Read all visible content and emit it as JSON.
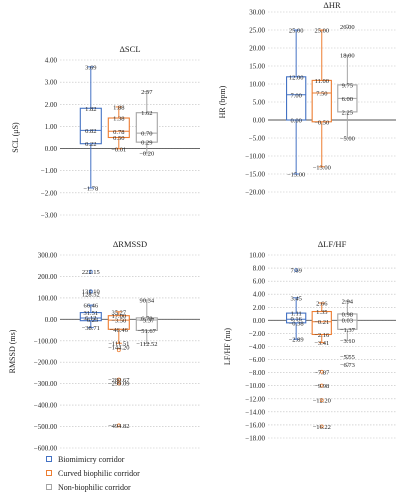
{
  "colors": {
    "biomimicry": "#4472c4",
    "curved": "#ed7d31",
    "nonbiophilic": "#a5a5a5"
  },
  "legend": [
    {
      "label": "Biomimicry corridor",
      "color": "#4472c4"
    },
    {
      "label": "Curved biophilic corridor",
      "color": "#ed7d31"
    },
    {
      "label": "Non-biophilic corridor",
      "color": "#a5a5a5"
    }
  ],
  "chart_data": [
    {
      "type": "box",
      "title": "ΔSCL",
      "ylabel": "SCL (μS)",
      "ylim": [
        -3.0,
        4.0
      ],
      "yticks": [
        "−3.00",
        "−2.00",
        "−1.00",
        "0.00",
        "1.00",
        "2.00",
        "3.00",
        "4.00"
      ],
      "ytick_values": [
        -3,
        -2,
        -1,
        0,
        1,
        2,
        3,
        4
      ],
      "grid": "dotted",
      "series": [
        {
          "color": "#4472c4",
          "min": -1.78,
          "q1": 0.22,
          "median": 0.82,
          "q3": 1.82,
          "max": 3.69,
          "outliers": [],
          "labels": [
            {
              "t": "3.69",
              "v": 3.69
            },
            {
              "t": "1.82",
              "v": 1.82
            },
            {
              "t": "0.82",
              "v": 0.82
            },
            {
              "t": "0.22",
              "v": 0.22
            },
            {
              "t": "−1.78",
              "v": -1.78
            }
          ]
        },
        {
          "color": "#ed7d31",
          "min": -0.01,
          "q1": 0.5,
          "median": 0.78,
          "q3": 1.38,
          "max": 1.88,
          "outliers": [],
          "labels": [
            {
              "t": "1.88",
              "v": 1.88
            },
            {
              "t": "1.38",
              "v": 1.38
            },
            {
              "t": "0.78",
              "v": 0.78
            },
            {
              "t": "0.50",
              "v": 0.5
            },
            {
              "t": "−0.01",
              "v": -0.01
            }
          ]
        },
        {
          "color": "#a5a5a5",
          "min": -0.2,
          "q1": 0.29,
          "median": 0.7,
          "q3": 1.62,
          "max": 2.57,
          "outliers": [],
          "labels": [
            {
              "t": "2.57",
              "v": 2.57
            },
            {
              "t": "1.62",
              "v": 1.62
            },
            {
              "t": "0.70",
              "v": 0.7
            },
            {
              "t": "0.29",
              "v": 0.29
            },
            {
              "t": "−0.20",
              "v": -0.2
            }
          ]
        }
      ]
    },
    {
      "type": "box",
      "title": "ΔHR",
      "ylabel": "HR (bpm)",
      "ylim": [
        -20,
        30
      ],
      "yticks": [
        "−20.00",
        "−15.00",
        "−10.00",
        "−5.00",
        "0.00",
        "5.00",
        "10.00",
        "15.00",
        "20.00",
        "25.00",
        "30.00"
      ],
      "ytick_values": [
        -20,
        -15,
        -10,
        -5,
        0,
        5,
        10,
        15,
        20,
        25,
        30
      ],
      "grid": "dotted",
      "series": [
        {
          "color": "#4472c4",
          "min": -15.0,
          "q1": 0.0,
          "median": 7.0,
          "q3": 12.0,
          "max": 25.0,
          "outliers": [],
          "labels": [
            {
              "t": "25.00",
              "v": 25
            },
            {
              "t": "12.00",
              "v": 12
            },
            {
              "t": "7.00",
              "v": 7
            },
            {
              "t": "0.00",
              "v": 0
            },
            {
              "t": "−15.00",
              "v": -15
            }
          ]
        },
        {
          "color": "#ed7d31",
          "min": -13.0,
          "q1": -0.5,
          "median": 7.5,
          "q3": 11.0,
          "max": 25.0,
          "outliers": [],
          "labels": [
            {
              "t": "25.00",
              "v": 25
            },
            {
              "t": "11.00",
              "v": 11
            },
            {
              "t": "7.50",
              "v": 7.5
            },
            {
              "t": "−0.50",
              "v": -0.5
            },
            {
              "t": "−13.00",
              "v": -13
            }
          ]
        },
        {
          "color": "#a5a5a5",
          "min": -5.0,
          "q1": 2.25,
          "median": 6.0,
          "q3": 9.75,
          "max": 18.0,
          "outliers": [
            26.0
          ],
          "labels": [
            {
              "t": "26.00",
              "v": 26
            },
            {
              "t": "18.00",
              "v": 18
            },
            {
              "t": "9.75",
              "v": 9.75
            },
            {
              "t": "6.00",
              "v": 6
            },
            {
              "t": "2.25",
              "v": 2.25
            },
            {
              "t": "−5.00",
              "v": -5
            }
          ]
        }
      ]
    },
    {
      "type": "box",
      "title": "ΔRMSSD",
      "ylabel": "RMSSD (ms)",
      "ylim": [
        -600,
        300
      ],
      "yticks": [
        "−600.00",
        "−500.00",
        "−400.00",
        "−300.00",
        "−200.00",
        "−100.00",
        "0.00",
        "100.00",
        "200.00",
        "300.00"
      ],
      "ytick_values": [
        -600,
        -500,
        -400,
        -300,
        -200,
        -100,
        0,
        100,
        200,
        300
      ],
      "grid": "dotted",
      "series": [
        {
          "color": "#4472c4",
          "min": -38.71,
          "q1": -6.23,
          "median": 6.12,
          "q3": 31.51,
          "max": 66.46,
          "outliers": [
            222.15,
            131.1,
            128.52
          ],
          "labels": [
            {
              "t": "222.15",
              "v": 222.15
            },
            {
              "t": "131.10",
              "v": 131.1
            },
            {
              "t": "128.52",
              "v": 117
            },
            {
              "t": "66.46",
              "v": 66.46
            },
            {
              "t": "31.51",
              "v": 31.51
            },
            {
              "t": "6.12",
              "v": 8
            },
            {
              "t": "−6.23",
              "v": -1
            },
            {
              "t": "−38.71",
              "v": -38.71
            }
          ]
        },
        {
          "color": "#ed7d31",
          "min": -111.51,
          "q1": -46.46,
          "median": -3.5,
          "q3": 17.0,
          "max": 35.27,
          "outliers": [
            -144.2,
            -280.67,
            -299.09,
            -494.82
          ],
          "labels": [
            {
              "t": "35.27",
              "v": 35.27
            },
            {
              "t": "17.00",
              "v": 17
            },
            {
              "t": "−3.50",
              "v": -3.5
            },
            {
              "t": "−46.46",
              "v": -46.46
            },
            {
              "t": "−111.51",
              "v": -111.51
            },
            {
              "t": "−144.20",
              "v": -128
            },
            {
              "t": "−280.67",
              "v": -280.67
            },
            {
              "t": "−299.09",
              "v": -297
            },
            {
              "t": "−494.82",
              "v": -494.82
            }
          ]
        },
        {
          "color": "#a5a5a5",
          "min": -112.52,
          "q1": -51.67,
          "median": -3.37,
          "q3": 6.78,
          "max": 90.34,
          "outliers": [],
          "labels": [
            {
              "t": "90.34",
              "v": 90.34
            },
            {
              "t": "6.78",
              "v": 6.78
            },
            {
              "t": "−3.37",
              "v": -3.37
            },
            {
              "t": "−51.67",
              "v": -51.67
            },
            {
              "t": "−112.52",
              "v": -112.52
            }
          ]
        }
      ]
    },
    {
      "type": "box",
      "title": "ΔLF/HF",
      "ylabel": "LF/HF (nu)",
      "ylim": [
        -18,
        10
      ],
      "yticks": [
        "−18.00",
        "−16.00",
        "−14.00",
        "−12.00",
        "−10.00",
        "−8.00",
        "−6.00",
        "−4.00",
        "−2.00",
        "0.00",
        "2.00",
        "4.00",
        "6.00",
        "8.00",
        "10.00"
      ],
      "ytick_values": [
        -18,
        -16,
        -14,
        -12,
        -10,
        -8,
        -6,
        -4,
        -2,
        0,
        2,
        4,
        6,
        8,
        10
      ],
      "grid": "dotted",
      "series": [
        {
          "color": "#4472c4",
          "min": -2.89,
          "q1": -0.38,
          "median": 0.16,
          "q3": 1.11,
          "max": 3.45,
          "outliers": [
            7.69
          ],
          "labels": [
            {
              "t": "7.69",
              "v": 7.69
            },
            {
              "t": "3.45",
              "v": 3.45
            },
            {
              "t": "1.11",
              "v": 1.11
            },
            {
              "t": "0.16",
              "v": 0.3
            },
            {
              "t": "−0.38",
              "v": -0.38
            },
            {
              "t": "−2.89",
              "v": -2.89
            }
          ]
        },
        {
          "color": "#ed7d31",
          "min": -3.41,
          "q1": -2.16,
          "median": -0.21,
          "q3": 1.35,
          "max": 2.66,
          "outliers": [
            -7.87,
            -9.98,
            -12.2,
            -16.22
          ],
          "labels": [
            {
              "t": "2.66",
              "v": 2.66
            },
            {
              "t": "1.35",
              "v": 1.35
            },
            {
              "t": "−0.21",
              "v": -0.21
            },
            {
              "t": "−2.16",
              "v": -2.16
            },
            {
              "t": "−3.41",
              "v": -3.41
            },
            {
              "t": "−7.87",
              "v": -7.87
            },
            {
              "t": "−9.98",
              "v": -9.98
            },
            {
              "t": "−12.20",
              "v": -12.2
            },
            {
              "t": "−16.22",
              "v": -16.22
            }
          ]
        },
        {
          "color": "#a5a5a5",
          "min": -3.1,
          "q1": -1.37,
          "median": 0.03,
          "q3": 0.98,
          "max": 2.94,
          "outliers": [
            -5.55,
            -6.73
          ],
          "labels": [
            {
              "t": "2.94",
              "v": 2.94
            },
            {
              "t": "0.98",
              "v": 0.98
            },
            {
              "t": "0.03",
              "v": 0.03
            },
            {
              "t": "−1.37",
              "v": -1.37
            },
            {
              "t": "−3.10",
              "v": -3.1
            },
            {
              "t": "−5.55",
              "v": -5.55
            },
            {
              "t": "−6.73",
              "v": -6.73
            }
          ]
        }
      ]
    }
  ]
}
